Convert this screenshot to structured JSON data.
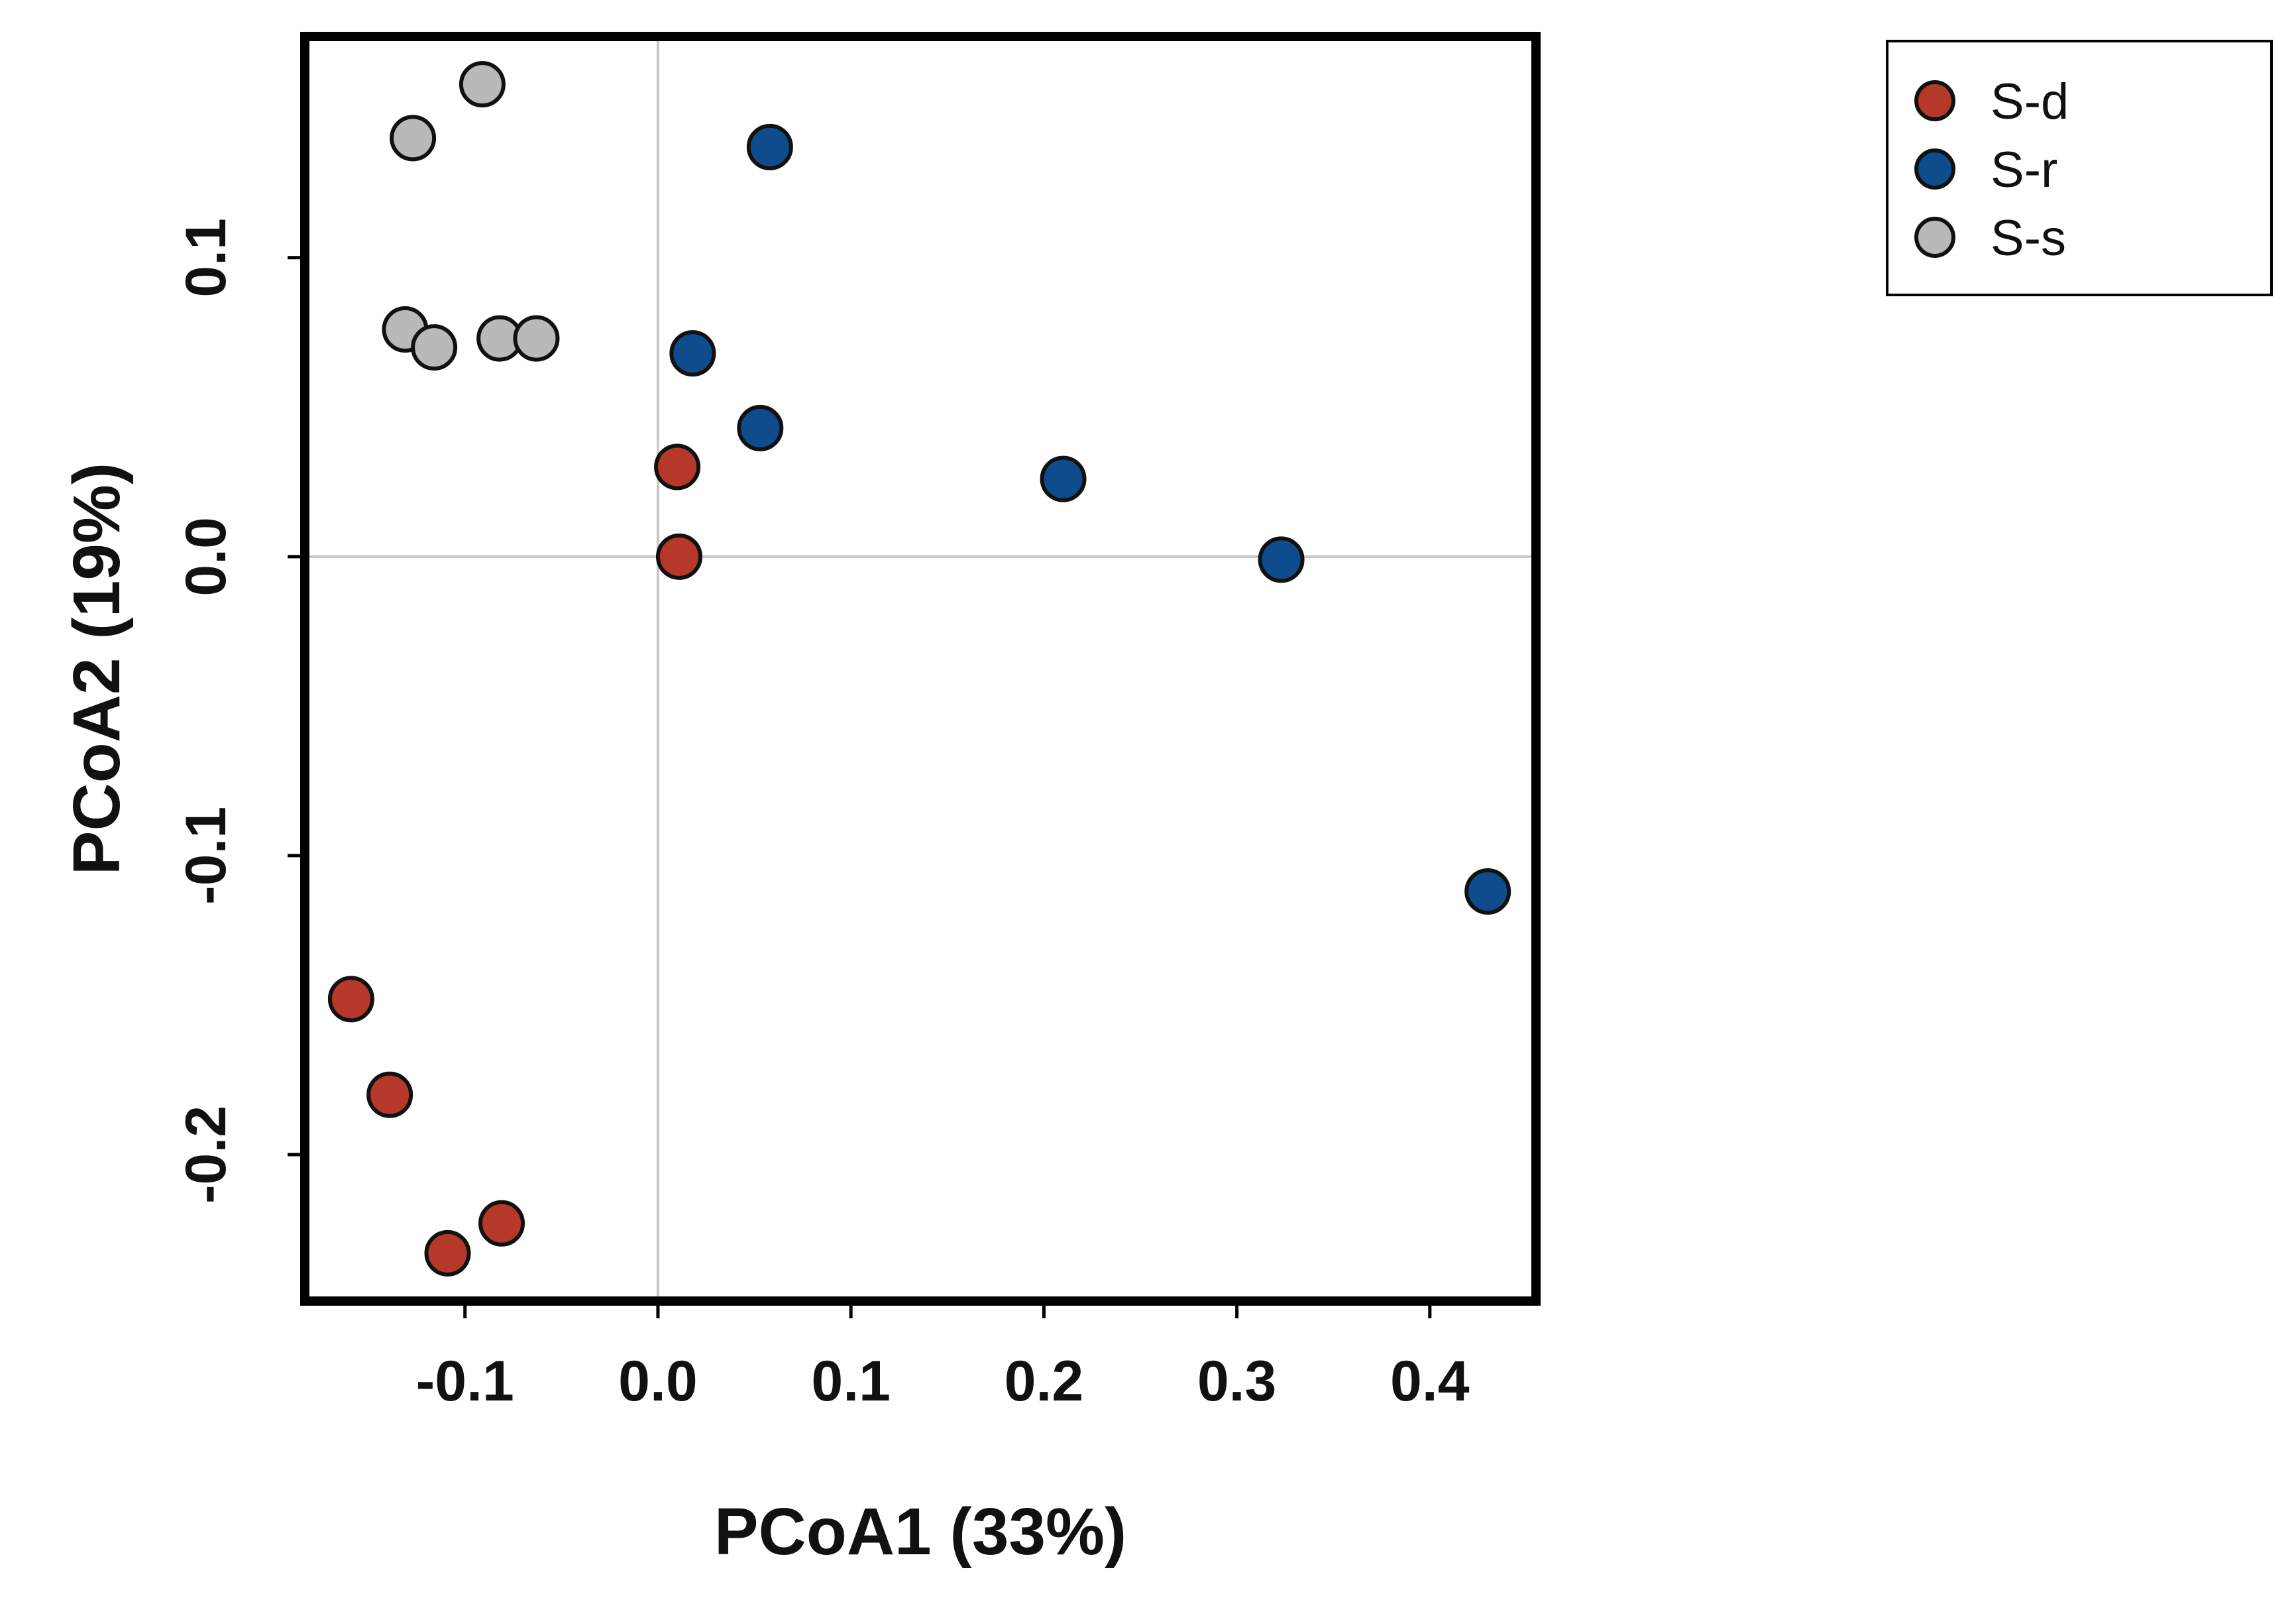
{
  "chart_data": {
    "type": "scatter",
    "title": "",
    "xlabel": "PCoA1 (33%)",
    "ylabel": "PCoA2 (19%)",
    "xlim": [
      -0.183,
      0.455
    ],
    "ylim": [
      -0.249,
      0.174
    ],
    "xticks": [
      -0.1,
      0.0,
      0.1,
      0.2,
      0.3,
      0.4
    ],
    "xtick_labels": [
      "-0.1",
      "0.0",
      "0.1",
      "0.2",
      "0.3",
      "0.4"
    ],
    "yticks": [
      -0.2,
      -0.1,
      0.0,
      0.1
    ],
    "ytick_labels": [
      "-0.2",
      "-0.1",
      "0.0",
      "0.1"
    ],
    "reference_lines": {
      "x": 0.0,
      "y": 0.0
    },
    "legend_position": "top-right, outside plot",
    "series": [
      {
        "name": "S-d",
        "color": "#b5382a",
        "points": [
          {
            "x": 0.01,
            "y": 0.03
          },
          {
            "x": 0.011,
            "y": 0.0
          },
          {
            "x": -0.159,
            "y": -0.148
          },
          {
            "x": -0.139,
            "y": -0.18
          },
          {
            "x": -0.109,
            "y": -0.233
          },
          {
            "x": -0.081,
            "y": -0.223
          }
        ]
      },
      {
        "name": "S-r",
        "color": "#0f4c8c",
        "points": [
          {
            "x": 0.058,
            "y": 0.137
          },
          {
            "x": 0.018,
            "y": 0.068
          },
          {
            "x": 0.053,
            "y": 0.043
          },
          {
            "x": 0.21,
            "y": 0.026
          },
          {
            "x": 0.323,
            "y": -0.001
          },
          {
            "x": 0.43,
            "y": -0.112
          }
        ]
      },
      {
        "name": "S-s",
        "color": "#b9b9b9",
        "points": [
          {
            "x": -0.091,
            "y": 0.158
          },
          {
            "x": -0.127,
            "y": 0.14
          },
          {
            "x": -0.131,
            "y": 0.076
          },
          {
            "x": -0.116,
            "y": 0.07
          },
          {
            "x": -0.082,
            "y": 0.073
          },
          {
            "x": -0.063,
            "y": 0.073
          }
        ]
      }
    ]
  }
}
